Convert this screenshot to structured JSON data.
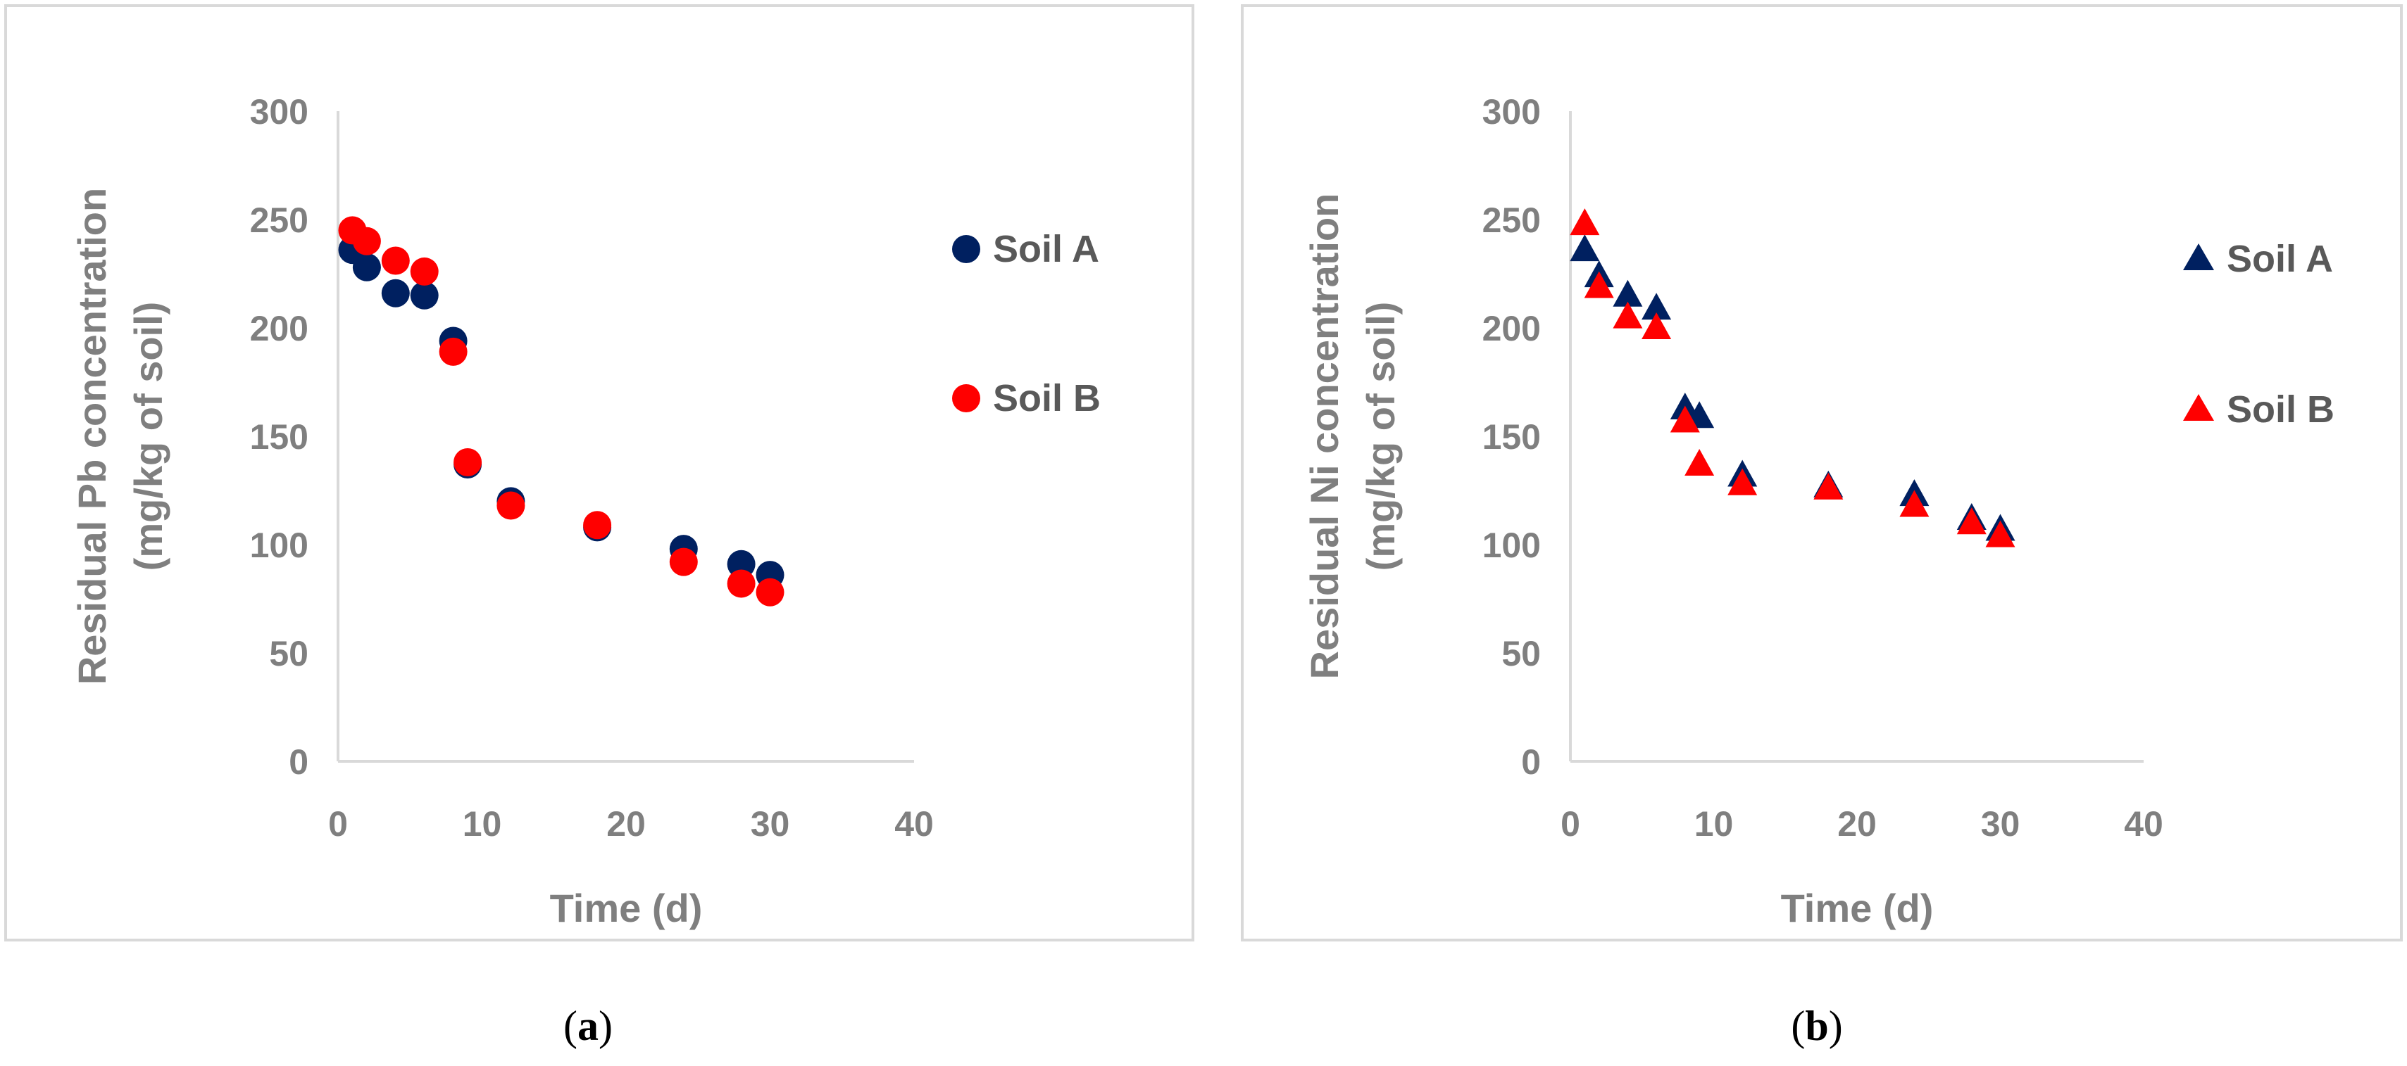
{
  "chart_data": [
    {
      "type": "scatter",
      "marker": "circle",
      "caption": "a",
      "title": "",
      "xlabel": "Time (d)",
      "ylabel_line1": "Residual Pb concentration",
      "ylabel_line2": "(mg/kg of soil)",
      "xlim": [
        0,
        40
      ],
      "ylim": [
        0,
        300
      ],
      "xticks": [
        "0",
        "10",
        "20",
        "30",
        "40"
      ],
      "yticks": [
        "0",
        "50",
        "100",
        "150",
        "200",
        "250",
        "300"
      ],
      "grid": false,
      "legend_position": "right",
      "series": [
        {
          "name": "Soil A",
          "color": "#002060",
          "x": [
            1,
            2,
            4,
            6,
            8,
            9,
            12,
            18,
            24,
            28,
            30
          ],
          "y": [
            236,
            228,
            216,
            215,
            194,
            137,
            120,
            108,
            98,
            91,
            86
          ]
        },
        {
          "name": "Soil B",
          "color": "#ff0000",
          "x": [
            1,
            2,
            4,
            6,
            8,
            9,
            12,
            18,
            24,
            28,
            30
          ],
          "y": [
            245,
            240,
            231,
            226,
            189,
            138,
            118,
            109,
            92,
            82,
            78
          ]
        }
      ]
    },
    {
      "type": "scatter",
      "marker": "triangle",
      "caption": "b",
      "title": "",
      "xlabel": "Time (d)",
      "ylabel_line1": "Residual Ni concentration",
      "ylabel_line2": "(mg/kg of soil)",
      "xlim": [
        0,
        40
      ],
      "ylim": [
        0,
        300
      ],
      "xticks": [
        "0",
        "10",
        "20",
        "30",
        "40"
      ],
      "yticks": [
        "0",
        "50",
        "100",
        "150",
        "200",
        "250",
        "300"
      ],
      "grid": false,
      "legend_position": "right",
      "series": [
        {
          "name": "Soil A",
          "color": "#002060",
          "x": [
            1,
            2,
            4,
            6,
            8,
            9,
            12,
            18,
            24,
            28,
            30
          ],
          "y": [
            236,
            224,
            215,
            209,
            163,
            159,
            132,
            127,
            123,
            112,
            107
          ]
        },
        {
          "name": "Soil B",
          "color": "#ff0000",
          "x": [
            1,
            2,
            4,
            6,
            8,
            9,
            12,
            18,
            24,
            28,
            30
          ],
          "y": [
            248,
            219,
            205,
            200,
            157,
            137,
            128,
            126,
            118,
            110,
            104
          ]
        }
      ]
    }
  ]
}
